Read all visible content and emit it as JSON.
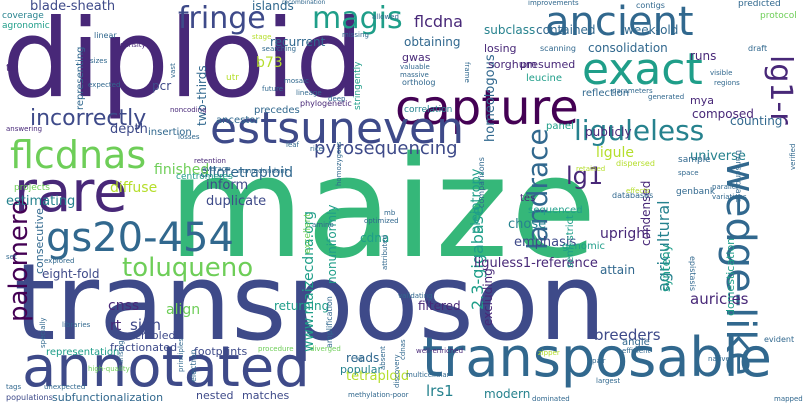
{
  "palette": {
    "purple": "#440154",
    "indigo": "#482878",
    "blue": "#3e4a89",
    "steel": "#31688e",
    "teal": "#26828e",
    "green": "#1f9e89",
    "emerald": "#35b779",
    "lime": "#6ece58",
    "yellow": "#b5de2b",
    "gold": "#fde725"
  },
  "words": [
    {
      "text": "maize",
      "color": "emerald"
    },
    {
      "text": "transposon",
      "color": "blue"
    },
    {
      "text": "diploid",
      "color": "indigo"
    },
    {
      "text": "annotated",
      "color": "blue"
    },
    {
      "text": "rare",
      "color": "indigo"
    },
    {
      "text": "transposable",
      "color": "steel"
    },
    {
      "text": "capture",
      "color": "purple"
    },
    {
      "text": "estsuneven",
      "color": "blue"
    },
    {
      "text": "exact",
      "color": "green"
    },
    {
      "text": "ancient",
      "color": "steel"
    },
    {
      "text": "flcdnas",
      "color": "lime"
    },
    {
      "text": "gs20-454",
      "color": "steel"
    },
    {
      "text": "wedge-like",
      "color": "steel"
    },
    {
      "text": "magis",
      "color": "green"
    },
    {
      "text": "fringe",
      "color": "blue"
    },
    {
      "text": "lg1-r",
      "color": "indigo"
    },
    {
      "text": "liguleless",
      "color": "teal"
    },
    {
      "text": "incorrectly",
      "color": "blue"
    },
    {
      "text": "landrace",
      "color": "steel"
    },
    {
      "text": "toluqueno",
      "color": "lime"
    },
    {
      "text": "palomero",
      "color": "purple"
    },
    {
      "text": "lg1",
      "color": "indigo"
    },
    {
      "text": "pyrosequencing",
      "color": "blue"
    },
    {
      "text": "allotetraploid",
      "color": "steel"
    },
    {
      "text": "2.3-gigabase",
      "color": "green"
    },
    {
      "text": "www.maizecdna.org",
      "color": "green"
    },
    {
      "text": "agricultural",
      "color": "teal"
    },
    {
      "text": "consolidation",
      "color": "steel"
    },
    {
      "text": "homeologous",
      "color": "steel"
    },
    {
      "text": "liguless1-reference",
      "color": "indigo"
    },
    {
      "text": "auricles",
      "color": "indigo"
    },
    {
      "text": "breeders",
      "color": "blue"
    },
    {
      "text": "tetraploid",
      "color": "yellow"
    },
    {
      "text": "lrs1",
      "color": "teal"
    },
    {
      "text": "cnss",
      "color": "indigo"
    },
    {
      "text": "sign",
      "color": "blue"
    },
    {
      "text": "align",
      "color": "lime"
    },
    {
      "text": "rt",
      "color": "indigo"
    },
    {
      "text": "returning",
      "color": "green"
    },
    {
      "text": "filtered",
      "color": "indigo"
    },
    {
      "text": "excluding",
      "color": "indigo"
    },
    {
      "text": "reads",
      "color": "steel"
    },
    {
      "text": "modern",
      "color": "teal"
    },
    {
      "text": "popular",
      "color": "teal"
    },
    {
      "text": "upright",
      "color": "indigo"
    },
    {
      "text": "condensed",
      "color": "indigo"
    },
    {
      "text": "synteny",
      "color": "green"
    },
    {
      "text": "domestication",
      "color": "green"
    },
    {
      "text": "attain",
      "color": "steel"
    },
    {
      "text": "runs",
      "color": "indigo"
    },
    {
      "text": "composed",
      "color": "indigo"
    },
    {
      "text": "mya",
      "color": "indigo"
    },
    {
      "text": "counting",
      "color": "steel"
    },
    {
      "text": "ligule",
      "color": "yellow"
    },
    {
      "text": "publicly",
      "color": "indigo"
    },
    {
      "text": "universe",
      "color": "teal"
    },
    {
      "text": "emphasis",
      "color": "blue"
    },
    {
      "text": "chose",
      "color": "teal"
    },
    {
      "text": "pleiotropy",
      "color": "green"
    },
    {
      "text": "cdna",
      "color": "green"
    },
    {
      "text": "nonuniformly",
      "color": "green"
    },
    {
      "text": "inform",
      "color": "blue"
    },
    {
      "text": "duplicate",
      "color": "blue"
    },
    {
      "text": "finished",
      "color": "lime"
    },
    {
      "text": "diffuse",
      "color": "yellow"
    },
    {
      "text": "estimating",
      "color": "teal"
    },
    {
      "text": "depth",
      "color": "blue"
    },
    {
      "text": "two-thirds",
      "color": "steel"
    },
    {
      "text": "pcr",
      "color": "blue"
    },
    {
      "text": "b73",
      "color": "yellow"
    },
    {
      "text": "recurrent",
      "color": "steel"
    },
    {
      "text": "obtaining",
      "color": "steel"
    },
    {
      "text": "gwas",
      "color": "indigo"
    },
    {
      "text": "flcdna",
      "color": "indigo"
    },
    {
      "text": "islands",
      "color": "steel"
    },
    {
      "text": "subclass",
      "color": "teal"
    },
    {
      "text": "contained",
      "color": "steel"
    },
    {
      "text": "week-old",
      "color": "steel"
    },
    {
      "text": "losing",
      "color": "indigo"
    },
    {
      "text": "presumed",
      "color": "indigo"
    },
    {
      "text": "sorghum",
      "color": "indigo"
    },
    {
      "text": "blade-sheath",
      "color": "blue"
    },
    {
      "text": "eight-fold",
      "color": "blue"
    },
    {
      "text": "consecutive",
      "color": "steel"
    },
    {
      "text": "fractionated",
      "color": "blue"
    },
    {
      "text": "assembled",
      "color": "blue"
    },
    {
      "text": "footprints",
      "color": "blue"
    },
    {
      "text": "subfunctionalization",
      "color": "steel"
    },
    {
      "text": "representation",
      "color": "green"
    },
    {
      "text": "nested",
      "color": "blue"
    },
    {
      "text": "matches",
      "color": "blue"
    },
    {
      "text": "representing",
      "color": "steel"
    },
    {
      "text": "ancestor",
      "color": "steel"
    },
    {
      "text": "precedes",
      "color": "steel"
    },
    {
      "text": "insertion",
      "color": "steel"
    },
    {
      "text": "genomic",
      "color": "green"
    },
    {
      "text": "sequenced",
      "color": "green"
    },
    {
      "text": "reflection",
      "color": "steel"
    },
    {
      "text": "leucine",
      "color": "green"
    },
    {
      "text": "panel",
      "color": "green"
    },
    {
      "text": "tes",
      "color": "indigo"
    },
    {
      "text": "semi-strict",
      "color": "green"
    },
    {
      "text": "angle",
      "color": "steel"
    },
    {
      "text": "sample",
      "color": "steel"
    },
    {
      "text": "genbank",
      "color": "steel"
    },
    {
      "text": "centromeres",
      "color": "green"
    },
    {
      "text": "agronomic",
      "color": "green"
    },
    {
      "text": "coverage",
      "color": "teal"
    },
    {
      "text": "projects",
      "color": "lime"
    },
    {
      "text": "amplification",
      "color": "steel"
    },
    {
      "text": "correlation",
      "color": "teal"
    },
    {
      "text": "excellent",
      "color": "lime"
    },
    {
      "text": "stringently",
      "color": "green"
    },
    {
      "text": "ortholog",
      "color": "steel"
    },
    {
      "text": "phylogenetic",
      "color": "indigo"
    },
    {
      "text": "scanning",
      "color": "steel"
    },
    {
      "text": "draft",
      "color": "steel"
    },
    {
      "text": "predicted",
      "color": "steel"
    },
    {
      "text": "protocol",
      "color": "lime"
    },
    {
      "text": "transcriptase",
      "color": "steel"
    },
    {
      "text": "parallel",
      "color": "steel"
    },
    {
      "text": "variations",
      "color": "steel"
    },
    {
      "text": "epistasis",
      "color": "steel"
    },
    {
      "text": "evident",
      "color": "steel"
    },
    {
      "text": "populations",
      "color": "blue"
    },
    {
      "text": "electron",
      "color": "steel"
    },
    {
      "text": "mapped",
      "color": "steel"
    },
    {
      "text": "dominated",
      "color": "steel"
    },
    {
      "text": "methylation-poor",
      "color": "steel"
    },
    {
      "text": "efficient",
      "color": "steel"
    },
    {
      "text": "well-enriched",
      "color": "indigo"
    },
    {
      "text": "multicellular",
      "color": "steel"
    },
    {
      "text": "principles",
      "color": "steel"
    },
    {
      "text": "libraries",
      "color": "steel"
    },
    {
      "text": "specially",
      "color": "steel"
    },
    {
      "text": "procedure",
      "color": "lime"
    },
    {
      "text": "diverged",
      "color": "lime"
    },
    {
      "text": "validating",
      "color": "steel"
    },
    {
      "text": "comparisons",
      "color": "steel"
    },
    {
      "text": "databases",
      "color": "steel"
    },
    {
      "text": "optimized",
      "color": "steel"
    },
    {
      "text": "noncoding",
      "color": "indigo"
    },
    {
      "text": "mosaic",
      "color": "steel"
    },
    {
      "text": "future",
      "color": "steel"
    },
    {
      "text": "deep",
      "color": "steel"
    },
    {
      "text": "losses",
      "color": "steel"
    },
    {
      "text": "retention",
      "color": "indigo"
    },
    {
      "text": "average",
      "color": "steel"
    },
    {
      "text": "expected",
      "color": "steel"
    },
    {
      "text": "searching",
      "color": "steel"
    },
    {
      "text": "valuable",
      "color": "steel"
    },
    {
      "text": "massive",
      "color": "steel"
    },
    {
      "text": "missing",
      "color": "steel"
    },
    {
      "text": "stage",
      "color": "yellow"
    },
    {
      "text": "linear",
      "color": "steel"
    },
    {
      "text": "density",
      "color": "indigo"
    },
    {
      "text": "sizes",
      "color": "steel"
    },
    {
      "text": "allowed",
      "color": "steel"
    },
    {
      "text": "improvements",
      "color": "steel"
    },
    {
      "text": "recombination",
      "color": "steel"
    },
    {
      "text": "contigs",
      "color": "steel"
    },
    {
      "text": "lineage",
      "color": "steel"
    },
    {
      "text": "leaf",
      "color": "steel"
    },
    {
      "text": "rice",
      "color": "steel"
    },
    {
      "text": "utr",
      "color": "yellow"
    },
    {
      "text": "vast",
      "color": "steel"
    },
    {
      "text": "largest",
      "color": "steel"
    },
    {
      "text": "native",
      "color": "steel"
    },
    {
      "text": "pair",
      "color": "steel"
    },
    {
      "text": "kb",
      "color": "steel"
    },
    {
      "text": "tags",
      "color": "steel"
    },
    {
      "text": "set",
      "color": "steel"
    },
    {
      "text": "te",
      "color": "indigo"
    },
    {
      "text": "amino",
      "color": "steel"
    },
    {
      "text": "space",
      "color": "steel"
    },
    {
      "text": "regions",
      "color": "steel"
    },
    {
      "text": "visible",
      "color": "steel"
    },
    {
      "text": "effects",
      "color": "yellow"
    },
    {
      "text": "generated",
      "color": "steel"
    },
    {
      "text": "parameters",
      "color": "steel"
    },
    {
      "text": "retained",
      "color": "yellow"
    },
    {
      "text": "dispersed",
      "color": "yellow"
    },
    {
      "text": "verified",
      "color": "steel"
    },
    {
      "text": "answering",
      "color": "indigo"
    },
    {
      "text": "explored",
      "color": "steel"
    },
    {
      "text": "unexpected",
      "color": "steel"
    },
    {
      "text": "high-quality",
      "color": "lime"
    },
    {
      "text": "nonredundant",
      "color": "steel"
    },
    {
      "text": "attributed",
      "color": "steel"
    },
    {
      "text": "homozygous",
      "color": "steel"
    },
    {
      "text": "mb",
      "color": "steel"
    },
    {
      "text": "absent",
      "color": "steel"
    },
    {
      "text": "zipper",
      "color": "yellow"
    },
    {
      "text": "frame",
      "color": "steel"
    },
    {
      "text": "discovery",
      "color": "steel"
    },
    {
      "text": "arising",
      "color": "steel"
    },
    {
      "text": "cdnas",
      "color": "steel"
    }
  ]
}
